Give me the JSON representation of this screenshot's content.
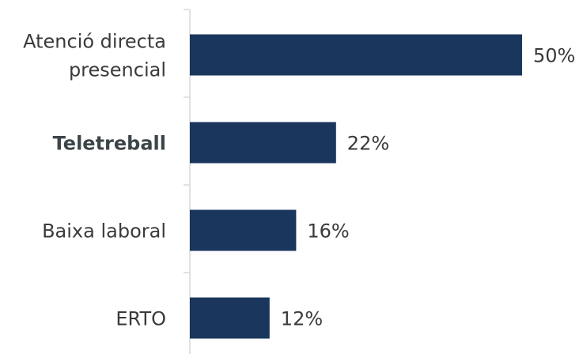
{
  "chart_data": {
    "type": "bar",
    "orientation": "horizontal",
    "categories": [
      [
        "Atenció directa",
        "presencial"
      ],
      [
        "Teletreball"
      ],
      [
        "Baixa laboral"
      ],
      [
        "ERTO"
      ]
    ],
    "highlighted_category": 1,
    "values": [
      50,
      22,
      16,
      12
    ],
    "value_labels": [
      "50%",
      "22%",
      "16%",
      "12%"
    ],
    "unit": "%",
    "xlim": [
      0,
      50
    ],
    "bar_color": "#1a365d",
    "grid": false,
    "legend": "none"
  }
}
